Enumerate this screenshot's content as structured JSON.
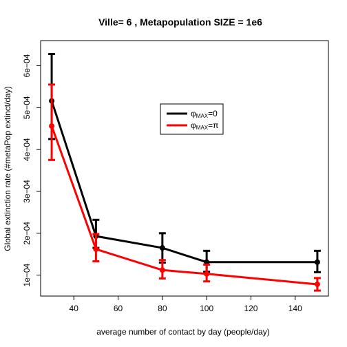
{
  "chart_data": {
    "type": "line",
    "title": "Ville= 6 , Metapopulation SIZE = 1e6",
    "xlabel": "average number of contact by day (people/day)",
    "ylabel": "Global extinction rate (#metaPop extinct/day)",
    "xlim": [
      25,
      155
    ],
    "ylim": [
      5e-05,
      0.00066
    ],
    "xticks": [
      40,
      60,
      80,
      100,
      120,
      140
    ],
    "xtick_labels": [
      "40",
      "60",
      "80",
      "100",
      "120",
      "140"
    ],
    "yticks": [
      0.0001,
      0.0002,
      0.0003,
      0.0004,
      0.0005,
      0.0006
    ],
    "ytick_labels": [
      "1e−04",
      "2e−04",
      "3e−04",
      "4e−04",
      "5e−04",
      "6e−04"
    ],
    "grid": false,
    "legend_position": "upper-right",
    "x": [
      30,
      50,
      80,
      100,
      150
    ],
    "series": [
      {
        "name": "φMAX=0",
        "name_main": "φ",
        "name_sub": "MAX",
        "name_tail": "=0",
        "color": "#000000",
        "values": [
          0.000516,
          0.000193,
          0.000165,
          0.000131,
          0.000131
        ],
        "err_low": [
          0.000425,
          0.000165,
          0.00013,
          0.000108,
          0.000107
        ],
        "err_high": [
          0.000628,
          0.000232,
          0.0002,
          0.000158,
          0.000158
        ]
      },
      {
        "name": "φMAX=π",
        "name_main": "φ",
        "name_sub": "MAX",
        "name_tail": "=π",
        "color": "#ff0000",
        "values": [
          0.000456,
          0.000162,
          0.000112,
          0.000103,
          7.8e-05
        ],
        "err_low": [
          0.000375,
          0.000133,
          9.2e-05,
          8.5e-05,
          6.3e-05
        ],
        "err_high": [
          0.000555,
          0.000198,
          0.000136,
          0.000125,
          9.3e-05
        ]
      }
    ]
  }
}
